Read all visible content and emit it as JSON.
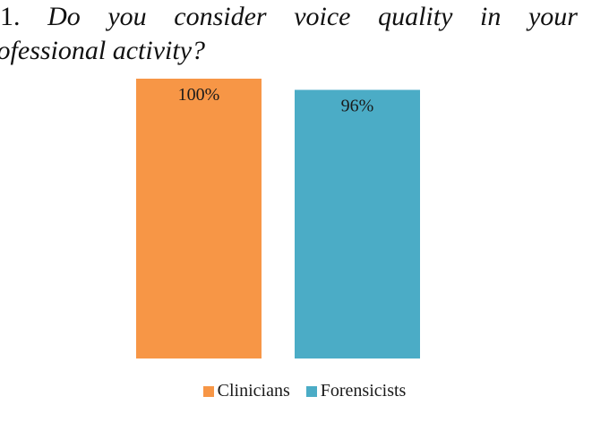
{
  "question": {
    "number": "1.",
    "line1_words": [
      "Do",
      "you",
      "consider",
      "voice",
      "quality",
      "in",
      "your"
    ],
    "line2": "rofessional activity?"
  },
  "chart_data": {
    "type": "bar",
    "categories": [
      "Clinicians",
      "Forensicists"
    ],
    "values": [
      100,
      96
    ],
    "value_labels": [
      "100%",
      "96%"
    ],
    "colors": [
      "#F79646",
      "#4BACC6"
    ],
    "ylim": [
      0,
      100
    ],
    "grid": false,
    "legend_position": "bottom"
  }
}
